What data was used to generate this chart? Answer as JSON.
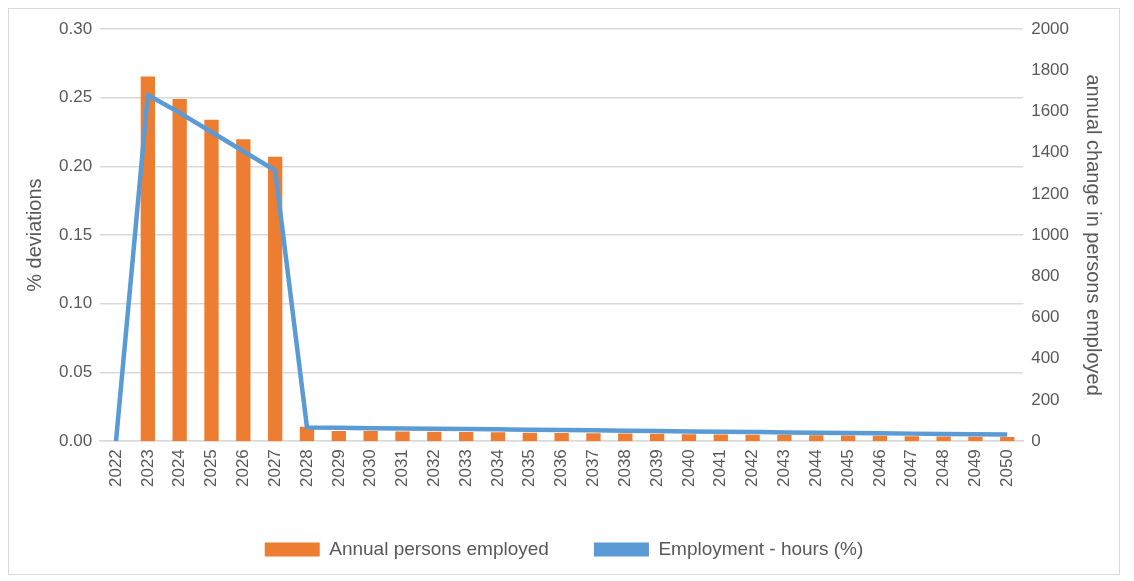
{
  "chart_data": {
    "type": "bar",
    "categories": [
      "2022",
      "2023",
      "2024",
      "2025",
      "2026",
      "2027",
      "2028",
      "2029",
      "2030",
      "2031",
      "2032",
      "2033",
      "2034",
      "2035",
      "2036",
      "2037",
      "2038",
      "2039",
      "2040",
      "2041",
      "2042",
      "2043",
      "2044",
      "2045",
      "2046",
      "2047",
      "2048",
      "2049",
      "2050"
    ],
    "series": [
      {
        "name": "Annual persons employed",
        "axis": "y2",
        "color": "#ed7d31",
        "values": [
          0,
          1770,
          1660,
          1560,
          1465,
          1380,
          70,
          50,
          49,
          47,
          46,
          44,
          43,
          41,
          40,
          39,
          37,
          36,
          34,
          33,
          31,
          30,
          29,
          27,
          26,
          24,
          23,
          21,
          20
        ]
      },
      {
        "name": "Employment - hours (%)",
        "type": "line",
        "color": "#5b9bd5",
        "values": [
          0,
          0.252,
          0.239,
          0.225,
          0.211,
          0.197,
          0.01,
          0.0098,
          0.0095,
          0.0093,
          0.009,
          0.0088,
          0.0086,
          0.0083,
          0.0081,
          0.0079,
          0.0076,
          0.0074,
          0.0071,
          0.0069,
          0.0067,
          0.0064,
          0.0062,
          0.006,
          0.0057,
          0.0055,
          0.0052,
          0.005,
          0.0048
        ]
      }
    ],
    "ylabel": "% deviations",
    "y2label": "annual change in persons employed",
    "ylim": [
      0,
      0.3
    ],
    "yticks": [
      {
        "value": 0,
        "label": "0.00"
      },
      {
        "value": 0.05,
        "label": "0.05"
      },
      {
        "value": 0.1,
        "label": "0.10"
      },
      {
        "value": 0.15,
        "label": "0.15"
      },
      {
        "value": 0.2,
        "label": "0.20"
      },
      {
        "value": 0.25,
        "label": "0.25"
      },
      {
        "value": 0.3,
        "label": "0.30"
      }
    ],
    "y2lim": [
      0,
      2000
    ],
    "y2ticks": [
      0,
      200,
      400,
      600,
      800,
      1000,
      1200,
      1400,
      1600,
      1800,
      2000
    ],
    "grid": "y",
    "legend": "bottom",
    "marker": "none",
    "line_style": "solid"
  }
}
